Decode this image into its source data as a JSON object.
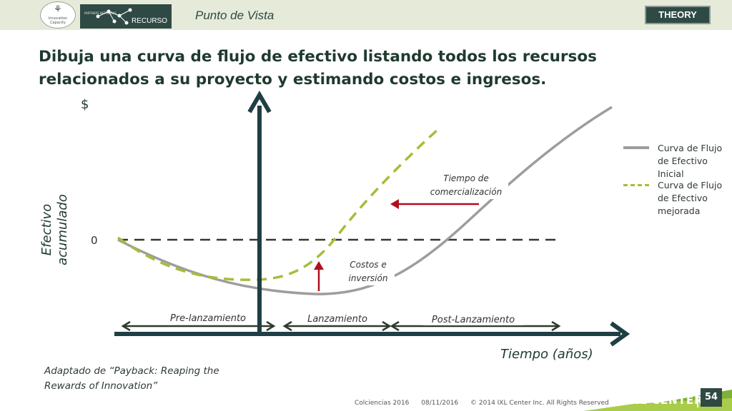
{
  "header": {
    "logo_text": "Innovation Capacity",
    "badge_network_text": "PARTNERS NETWORKS",
    "badge_label": "RECURSO",
    "section": "Punto de Vista",
    "tag": "THEORY"
  },
  "title": "Dibuja una curva de flujo de efectivo listando todos los recursos relacionados a su proyecto y estimando costos e ingresos.",
  "diagram": {
    "y_axis_label": "Efectivo acumulado",
    "y_top_symbol": "$",
    "zero_label": "0",
    "x_axis_label": "Tiempo (años)",
    "phases": [
      "Pre-lanzamiento",
      "Lanzamiento",
      "Post-Lanzamiento"
    ],
    "annotation_time": "Tiempo de comercialización",
    "annotation_cost": "Costos e inversión",
    "legend": [
      {
        "label": "Curva de Flujo de Efectivo Inicial",
        "color": "#9d9d9d",
        "style": "solid"
      },
      {
        "label": "Curva de Flujo de Efectivo mejorada",
        "color": "#a6bd3a",
        "style": "dashed"
      }
    ],
    "colors": {
      "axis": "#1f3f45",
      "arrow": "#b0101e",
      "phase_arrows": "#2d3a2d"
    }
  },
  "source": "Adaptado de “Payback: Reaping the Rewards of Innovation”",
  "footer": {
    "org": "Colciencias 2016",
    "date": "08/11/2016",
    "copyright": "© 2014 IXL Center Inc. All Rights Reserved",
    "brand": "IXL CENTER",
    "page": "54"
  }
}
